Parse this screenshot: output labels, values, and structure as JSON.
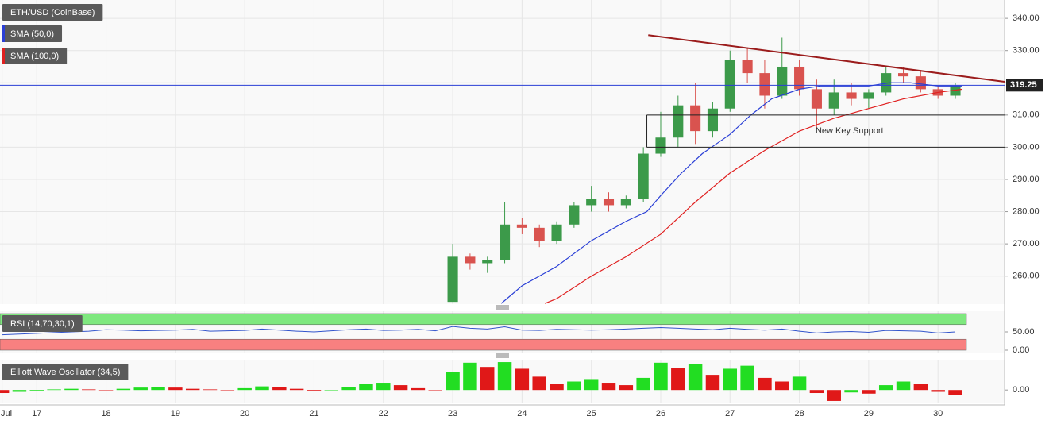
{
  "chart_data": [
    {
      "type": "candlestick",
      "title": "ETH/USD (CoinBase)",
      "x": [
        23,
        23.25,
        23.5,
        23.75,
        24,
        24.25,
        24.5,
        24.75,
        25,
        25.25,
        25.5,
        25.75,
        26,
        26.25,
        26.5,
        26.75,
        27,
        27.25,
        27.5,
        27.75,
        28,
        28.25,
        28.5,
        28.75,
        29,
        29.25,
        29.5,
        29.75,
        30,
        30.25
      ],
      "open": [
        252,
        266,
        264,
        265,
        276,
        275,
        271,
        276,
        282,
        284,
        282,
        284,
        298,
        303,
        313,
        305,
        312,
        327,
        323,
        316,
        325,
        318,
        312,
        317,
        315,
        317,
        323,
        322,
        318,
        316
      ],
      "high": [
        270,
        267,
        266,
        283,
        278,
        276,
        277,
        283,
        288,
        286,
        285,
        300,
        311,
        316,
        320,
        314,
        330,
        331,
        327,
        334,
        327,
        321,
        321,
        320,
        318,
        325,
        325,
        324,
        319,
        320
      ],
      "low": [
        252,
        262,
        261,
        264,
        273,
        269,
        270,
        275,
        280,
        280,
        281,
        283,
        297,
        300,
        301,
        303,
        311,
        320,
        312,
        315,
        316,
        306,
        310,
        313,
        312,
        316,
        320,
        317,
        315,
        315
      ],
      "close": [
        266,
        264,
        265,
        276,
        275,
        271,
        276,
        282,
        284,
        282,
        284,
        298,
        303,
        313,
        305,
        312,
        327,
        323,
        316,
        325,
        318,
        312,
        317,
        315,
        317,
        323,
        322,
        318,
        316,
        319
      ],
      "up_color": "#3c9a4a",
      "down_color": "#d9534f",
      "xlim": [
        16.47,
        30.96
      ],
      "xticks": [
        {
          "value": 16.5,
          "label": "Jul"
        },
        17,
        18,
        19,
        20,
        21,
        22,
        23,
        24,
        25,
        26,
        27,
        28,
        29,
        30
      ],
      "ylim": [
        251.3,
        345.7
      ],
      "yticks": [
        {
          "value": 260,
          "label": "260.00"
        },
        {
          "value": 270,
          "label": "270.00"
        },
        {
          "value": 280,
          "label": "280.00"
        },
        {
          "value": 290,
          "label": "290.00"
        },
        {
          "value": 300,
          "label": "300.00"
        },
        {
          "value": 310,
          "label": "310.00"
        },
        {
          "value": 320,
          "label": "320.00"
        },
        {
          "value": 330,
          "label": "330.00"
        },
        {
          "value": 340,
          "label": "340.00"
        }
      ],
      "grid": true,
      "series": [
        {
          "name": "SMA (50,0)",
          "color": "#2a3fd6",
          "x": [
            23.7,
            24,
            24.5,
            25,
            25.5,
            25.8,
            26,
            26.3,
            26.6,
            27,
            27.3,
            27.6,
            28,
            28.3,
            28.7,
            29,
            29.3,
            29.6,
            30,
            30.35
          ],
          "values": [
            251.5,
            257,
            263,
            271,
            277,
            280,
            285,
            292,
            298,
            304,
            310,
            315,
            318,
            319,
            319,
            319,
            320,
            320,
            319,
            319
          ]
        },
        {
          "name": "SMA (100,0)",
          "color": "#e02020",
          "x": [
            24.33,
            24.5,
            25,
            25.5,
            26,
            26.5,
            27,
            27.5,
            28,
            28.5,
            29,
            29.5,
            30,
            30.35
          ],
          "values": [
            251.5,
            253,
            260,
            266,
            273,
            283,
            292,
            299,
            305,
            309,
            312,
            315,
            317,
            318
          ]
        }
      ],
      "trendline": {
        "x": [
          25.82,
          30.96
        ],
        "y": [
          334.8,
          320.3
        ],
        "color": "#9b1c1c"
      },
      "support_zone": {
        "x": [
          25.8,
          30.96
        ],
        "y": [
          300,
          310
        ],
        "label": "New Key Support"
      },
      "last_price": {
        "value": 319.25,
        "label": "319.25",
        "color": "#2a3fd6"
      }
    },
    {
      "type": "line",
      "title": "RSI (14,70,30,1)",
      "x": [
        16.5,
        16.75,
        17,
        17.25,
        17.5,
        17.75,
        18,
        18.25,
        18.5,
        18.75,
        19,
        19.25,
        19.5,
        19.75,
        20,
        20.25,
        20.5,
        20.75,
        21,
        21.25,
        21.5,
        21.75,
        22,
        22.25,
        22.5,
        22.75,
        23,
        23.25,
        23.5,
        23.75,
        24,
        24.25,
        24.5,
        24.75,
        25,
        25.25,
        25.5,
        25.75,
        26,
        26.25,
        26.5,
        26.75,
        27,
        27.25,
        27.5,
        27.75,
        28,
        28.25,
        28.5,
        28.75,
        29,
        29.25,
        29.5,
        29.75,
        30,
        30.25
      ],
      "values": [
        42,
        44,
        46,
        48,
        50,
        52,
        56,
        55,
        53,
        54,
        55,
        57,
        52,
        53,
        54,
        58,
        55,
        52,
        50,
        53,
        56,
        58,
        54,
        55,
        57,
        53,
        65,
        60,
        58,
        64,
        55,
        54,
        57,
        56,
        55,
        56,
        58,
        60,
        62,
        60,
        58,
        56,
        60,
        57,
        55,
        58,
        52,
        47,
        50,
        51,
        49,
        54,
        53,
        52,
        47,
        50
      ],
      "color": "#3355cc",
      "ylim": [
        -6.5,
        106.5
      ],
      "yticks": [
        {
          "value": 0,
          "label": "0.00"
        },
        {
          "value": 50,
          "label": "50.00"
        }
      ],
      "bands": [
        {
          "range": [
            70,
            100
          ],
          "color": "#7ee87e"
        },
        {
          "range": [
            0,
            30
          ],
          "color": "#f88080"
        }
      ]
    },
    {
      "type": "bar",
      "title": "Elliott Wave Oscillator (34,5)",
      "x": [
        16.5,
        16.75,
        17,
        17.25,
        17.5,
        17.75,
        18,
        18.25,
        18.5,
        18.75,
        19,
        19.25,
        19.5,
        19.75,
        20,
        20.25,
        20.5,
        20.75,
        21,
        21.25,
        21.5,
        21.75,
        22,
        22.25,
        22.5,
        22.75,
        23,
        23.25,
        23.5,
        23.75,
        24,
        24.25,
        24.5,
        24.75,
        25,
        25.25,
        25.5,
        25.75,
        26,
        26.25,
        26.5,
        26.75,
        27,
        27.25,
        27.5,
        27.75,
        28,
        28.25,
        28.5,
        28.75,
        29,
        29.25,
        29.5,
        29.75,
        30,
        30.25
      ],
      "values": [
        -0.5,
        -0.3,
        -0.1,
        0.1,
        0.2,
        0.1,
        0.0,
        0.2,
        0.4,
        0.5,
        0.4,
        0.2,
        0.1,
        0.0,
        0.3,
        0.6,
        0.5,
        0.2,
        -0.1,
        0.0,
        0.5,
        1.0,
        1.2,
        0.8,
        0.3,
        0.0,
        3.0,
        4.5,
        3.8,
        4.6,
        3.5,
        2.2,
        1.0,
        1.4,
        1.8,
        1.2,
        0.8,
        2.0,
        4.5,
        3.6,
        4.3,
        2.5,
        3.5,
        4.0,
        2.0,
        1.4,
        2.2,
        -0.5,
        -1.8,
        -0.4,
        -0.6,
        0.8,
        1.4,
        1.0,
        -0.3,
        -0.8
      ],
      "up_color": "#22dd22",
      "down_color": "#e01818",
      "ylim": [
        -2.2,
        5
      ],
      "yticks": [
        {
          "value": 0,
          "label": "0.00"
        }
      ]
    }
  ]
}
